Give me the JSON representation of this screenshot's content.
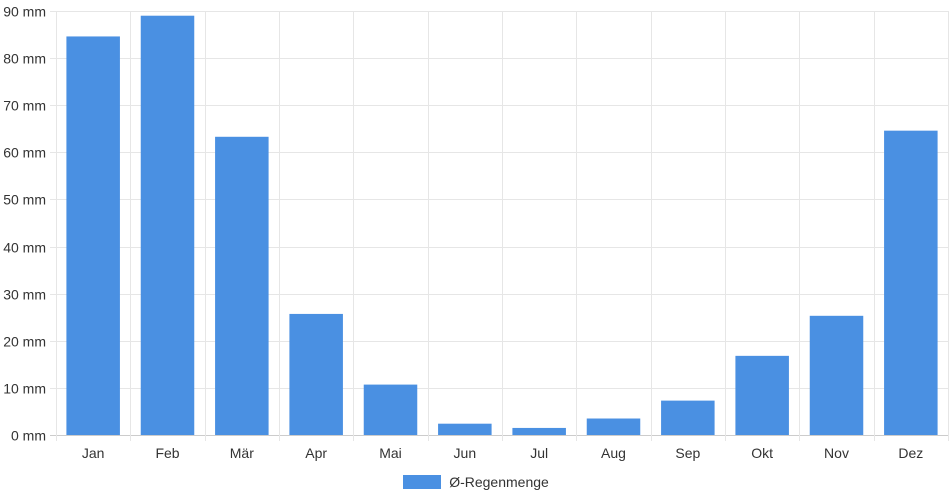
{
  "chart_data": {
    "type": "bar",
    "categories": [
      "Jan",
      "Feb",
      "Mär",
      "Apr",
      "Mai",
      "Jun",
      "Jul",
      "Aug",
      "Sep",
      "Okt",
      "Nov",
      "Dez"
    ],
    "series": [
      {
        "name": "Ø-Regenmenge",
        "values": [
          84.6,
          89.0,
          63.3,
          25.7,
          10.7,
          2.4,
          1.5,
          3.5,
          7.3,
          16.8,
          25.3,
          64.6
        ]
      }
    ],
    "y_ticks": [
      "0 mm",
      "10 mm",
      "20 mm",
      "30 mm",
      "40 mm",
      "50 mm",
      "60 mm",
      "70 mm",
      "80 mm",
      "90 mm"
    ],
    "ylim": [
      0,
      90
    ],
    "grid": true,
    "legend_position": "bottom",
    "colors": {
      "bar": "#4a90e2",
      "grid": "#e6e6e6",
      "text": "#333333"
    }
  }
}
